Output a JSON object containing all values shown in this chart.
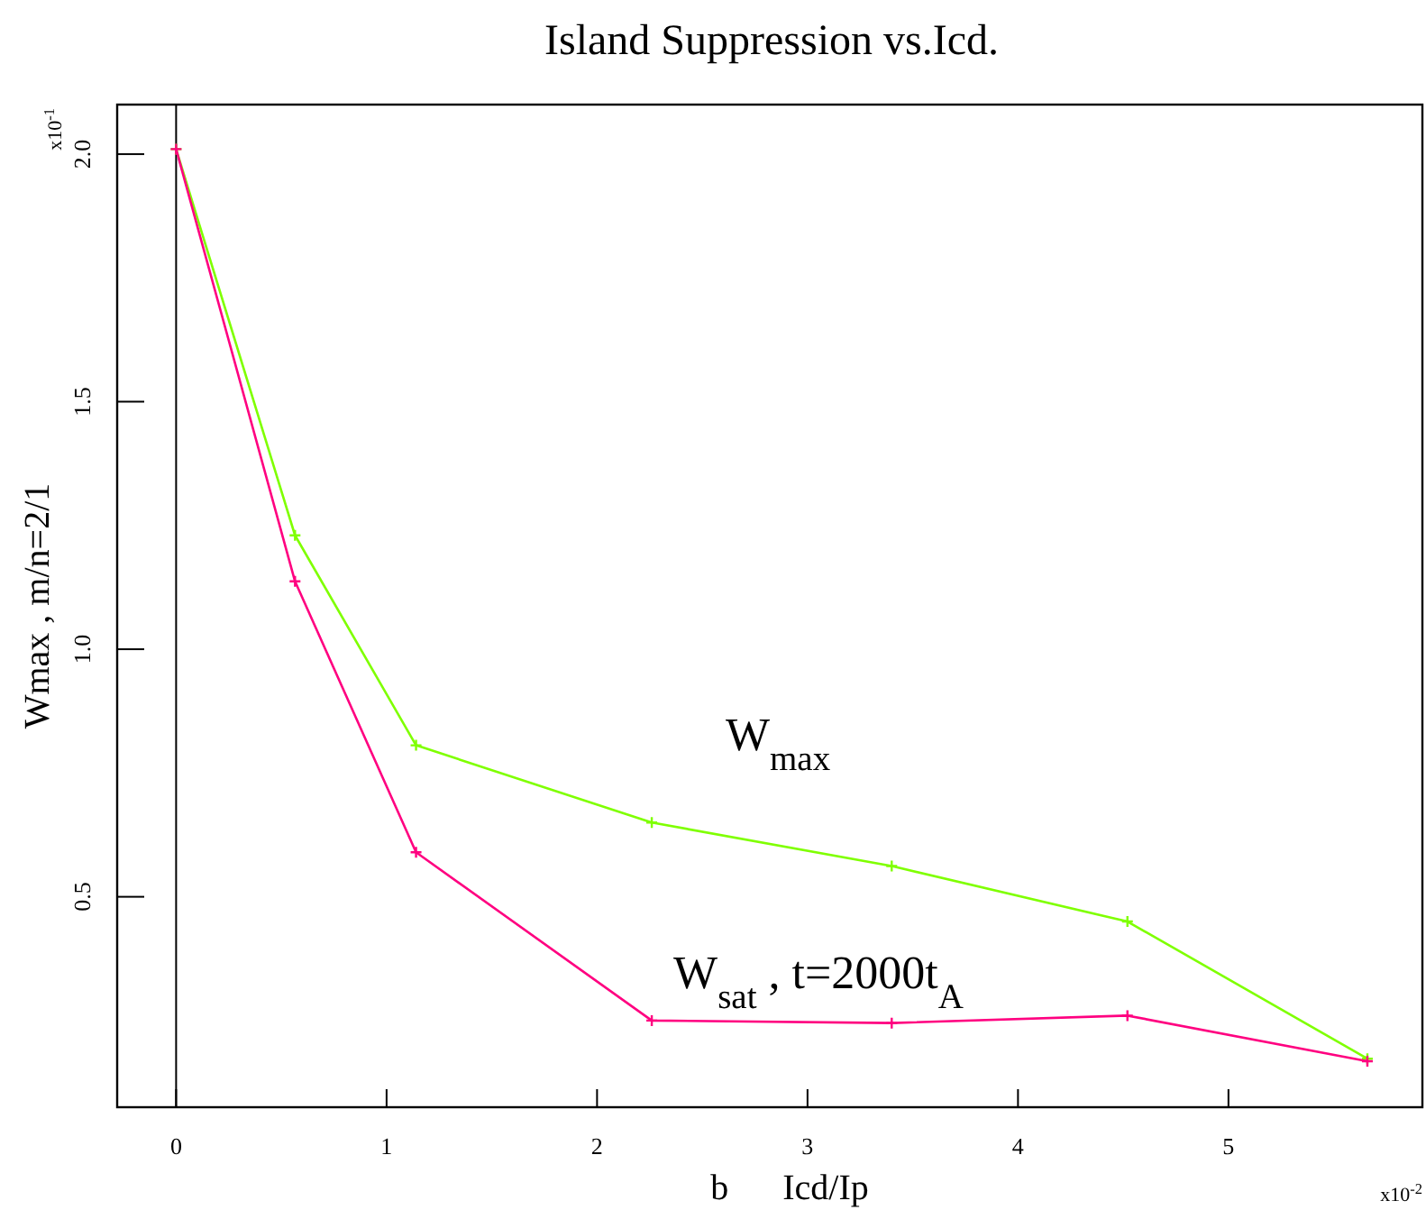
{
  "chart_data": {
    "type": "line",
    "title": "Island Suppression vs.Icd.",
    "xlabel": "b      Icd/Ip",
    "ylabel": "Wmax , m/n=2/1",
    "x": [
      0,
      0.565,
      1.14,
      2.26,
      3.4,
      4.52,
      5.66
    ],
    "series": [
      {
        "name": "W$_{max}$",
        "color": "#7fff00",
        "values": [
          2.01,
          1.23,
          0.806,
          0.65,
          0.562,
          0.45,
          0.173
        ]
      },
      {
        "name": "W$_{sat}$ , t=2000t$_{A}$",
        "color": "#ff0080",
        "values": [
          2.01,
          1.137,
          0.59,
          0.25,
          0.245,
          0.26,
          0.168
        ]
      }
    ],
    "xlim": [
      -0.28,
      5.93
    ],
    "ylim": [
      0.075,
      2.1
    ],
    "xticks": [
      0,
      1,
      2,
      3,
      4,
      5
    ],
    "yticks": [
      {
        "value": 0.5,
        "label": "0.5"
      },
      {
        "value": 1,
        "label": "1.0"
      },
      {
        "value": 1.5,
        "label": "1.5"
      },
      {
        "value": 2,
        "label": "2.0"
      }
    ],
    "marker": "cross",
    "line_style": "solid",
    "grid": false,
    "ref_lines": [
      {
        "axis": "x",
        "value": 0,
        "color": "#000000"
      }
    ],
    "annotations": [
      "x10$^{-1}$",
      "x10$^{-2}$"
    ]
  }
}
